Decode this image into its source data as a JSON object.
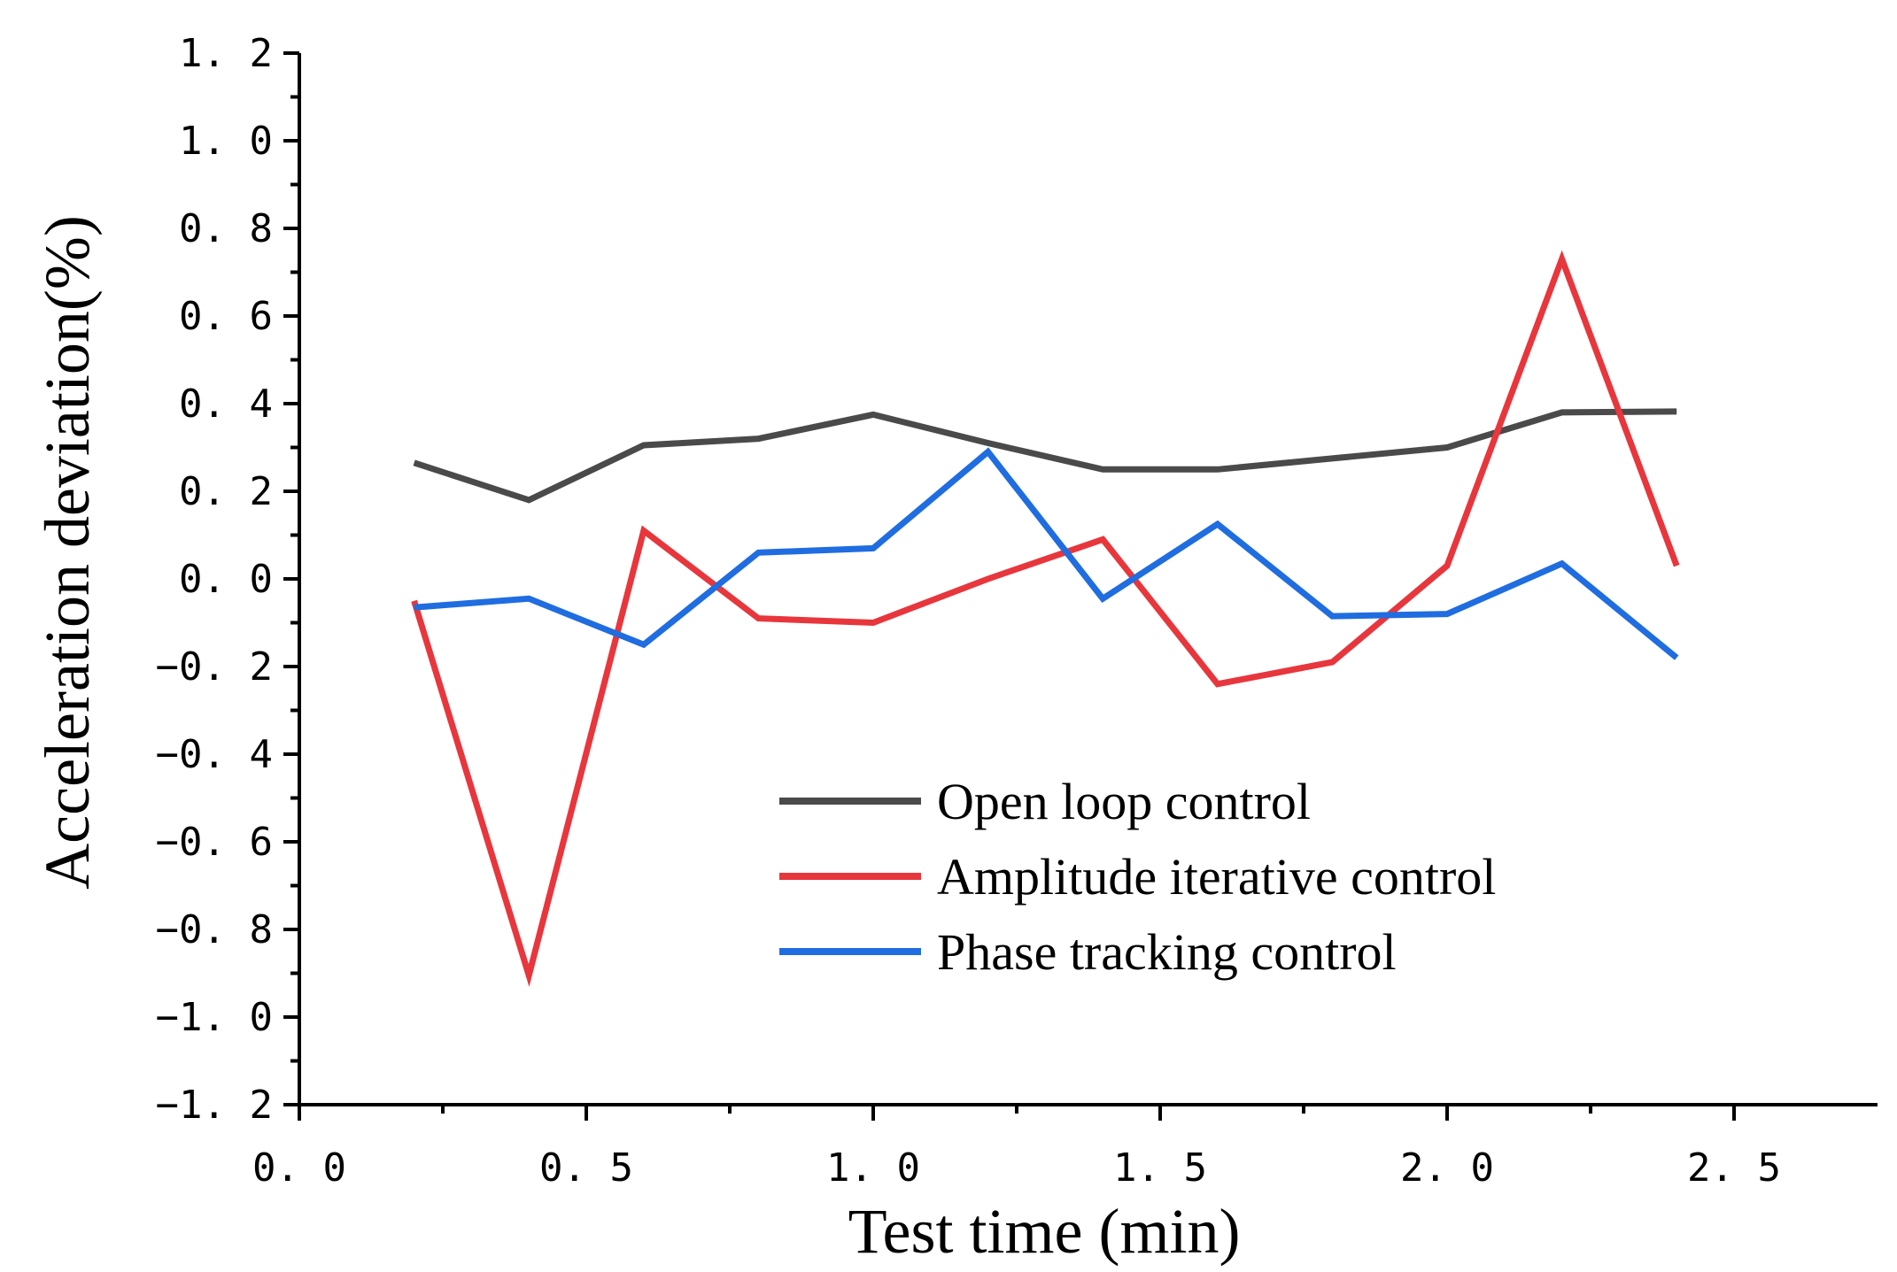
{
  "chart_data": {
    "type": "line",
    "title": "",
    "xlabel": "Test time (min)",
    "ylabel": "Acceleration deviation(%)",
    "xlim": [
      0,
      2.75
    ],
    "ylim": [
      -1.2,
      1.2
    ],
    "x_ticks": [
      0.0,
      0.5,
      1.0,
      1.5,
      2.0,
      2.5
    ],
    "x_tick_labels": [
      "0. 0",
      "0. 5",
      "1. 0",
      "1. 5",
      "2. 0",
      "2. 5"
    ],
    "y_ticks": [
      1.2,
      1.0,
      0.8,
      0.6,
      0.4,
      0.2,
      0.0,
      -0.2,
      -0.4,
      -0.6,
      -0.8,
      -1.0,
      -1.2
    ],
    "y_tick_labels": [
      "1. 2",
      "1. 0",
      "0. 8",
      "0. 6",
      "0. 4",
      "0. 2",
      "0. 0",
      "−0. 2",
      "−0. 4",
      "−0. 6",
      "−0. 8",
      "−1. 0",
      "−1. 2"
    ],
    "grid": false,
    "legend_position": "lower-center",
    "x": [
      0.2,
      0.4,
      0.6,
      0.8,
      1.0,
      1.2,
      1.4,
      1.6,
      1.8,
      2.0,
      2.2,
      2.4
    ],
    "series": [
      {
        "name": "Open loop control",
        "color": "#4a4a4a",
        "values": [
          0.265,
          0.18,
          0.305,
          0.32,
          0.375,
          0.31,
          0.25,
          0.25,
          0.275,
          0.3,
          0.38,
          0.382
        ]
      },
      {
        "name": "Amplitude iterative control",
        "color": "#e8363d",
        "values": [
          -0.05,
          -0.905,
          0.11,
          -0.09,
          -0.1,
          0.0,
          0.09,
          -0.24,
          -0.19,
          0.03,
          0.73,
          0.03
        ]
      },
      {
        "name": "Phase tracking control",
        "color": "#1f6de0",
        "values": [
          -0.065,
          -0.045,
          -0.15,
          0.06,
          0.07,
          0.29,
          -0.045,
          0.125,
          -0.085,
          -0.08,
          0.035,
          -0.18
        ]
      }
    ]
  }
}
